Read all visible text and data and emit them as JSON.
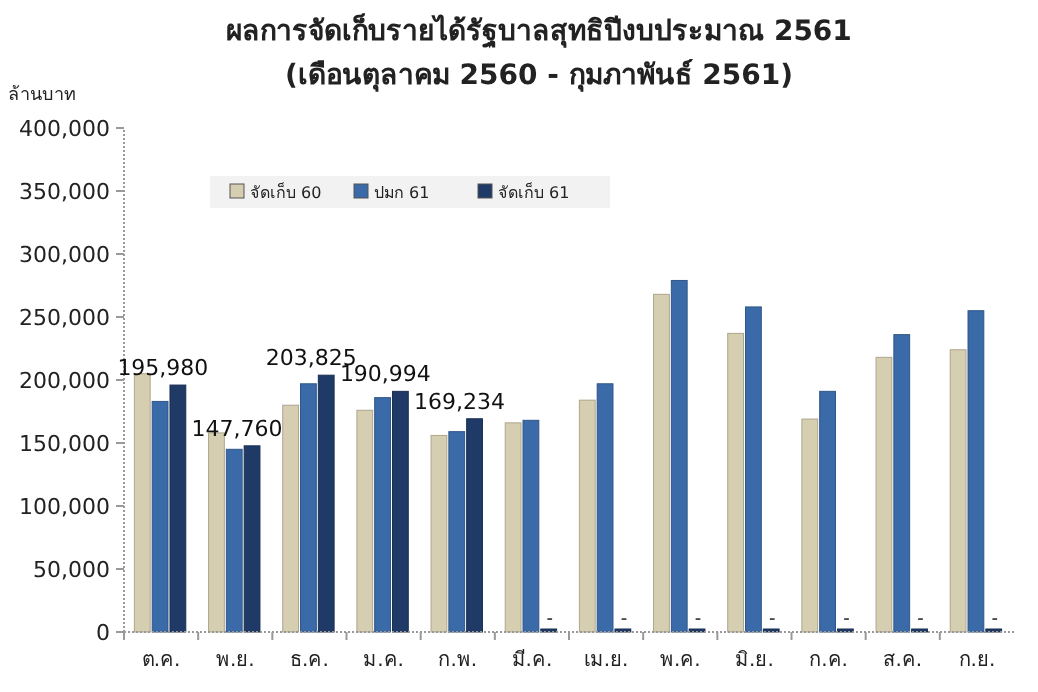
{
  "chart_data": {
    "type": "bar",
    "title": "ผลการจัดเก็บรายได้รัฐบาลสุทธิปีงบประมาณ 2561",
    "subtitle": "(เดือนตุลาคม 2560 - กุมภาพันธ์ 2561)",
    "ylabel": "ล้านบาท",
    "categories": [
      "ต.ค.",
      "พ.ย.",
      "ธ.ค.",
      "ม.ค.",
      "ก.พ.",
      "มี.ค.",
      "เม.ย.",
      "พ.ค.",
      "มิ.ย.",
      "ก.ค.",
      "ส.ค.",
      "ก.ย."
    ],
    "series": [
      {
        "name": "จัดเก็บ 60",
        "color": "#d6ceb0",
        "values": [
          205000,
          158000,
          180000,
          176000,
          156000,
          166000,
          184000,
          268000,
          237000,
          169000,
          218000,
          224000
        ]
      },
      {
        "name": "ปมก 61",
        "color": "#3b6aa8",
        "values": [
          183000,
          145000,
          197000,
          186000,
          159000,
          168000,
          197000,
          279000,
          258000,
          191000,
          236000,
          255000
        ]
      },
      {
        "name": "จัดเก็บ 61",
        "color": "#1f3a66",
        "values": [
          195980,
          147760,
          203825,
          190994,
          169234,
          0,
          0,
          0,
          0,
          0,
          0,
          0
        ],
        "value_labels": [
          "195,980",
          "147,760",
          "203,825",
          "190,994",
          "169,234",
          "-",
          "-",
          "-",
          "-",
          "-",
          "-",
          "-"
        ]
      }
    ],
    "ylim": [
      0,
      400000
    ],
    "yticks": [
      {
        "value": 0,
        "label": "0"
      },
      {
        "value": 50000,
        "label": "50,000"
      },
      {
        "value": 100000,
        "label": "100,000"
      },
      {
        "value": 150000,
        "label": "150,000"
      },
      {
        "value": 200000,
        "label": "200,000"
      },
      {
        "value": 250000,
        "label": "250,000"
      },
      {
        "value": 300000,
        "label": "300,000"
      },
      {
        "value": 350000,
        "label": "350,000"
      },
      {
        "value": 400000,
        "label": "400,000"
      }
    ],
    "legend": "top left",
    "grid": false
  }
}
